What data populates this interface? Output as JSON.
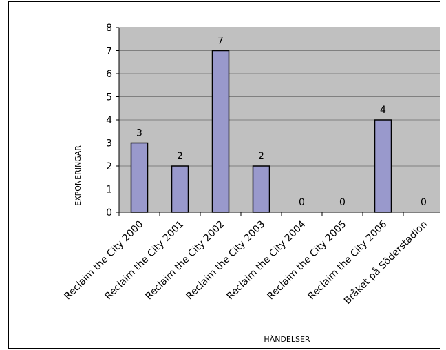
{
  "chart_data": {
    "type": "bar",
    "categories": [
      "Reclaim the City 2000",
      "Reclaim the City 2001",
      "Reclaim the City 2002",
      "Reclaim the City 2003",
      "Reclaim the City 2004",
      "Reclaim the City 2005",
      "Reclaim the City 2006",
      "Bråket på Söderstadion"
    ],
    "values": [
      3,
      2,
      7,
      2,
      0,
      0,
      4,
      0
    ],
    "xlabel": "HÄNDELSER",
    "ylabel": "EXPONERINGAR",
    "ylim": [
      0,
      8
    ],
    "yticks": [
      0,
      1,
      2,
      3,
      4,
      5,
      6,
      7,
      8
    ],
    "grid": true,
    "legend": "none",
    "plot_background": "#c0c0c0",
    "bar_color": "#9999cc"
  }
}
